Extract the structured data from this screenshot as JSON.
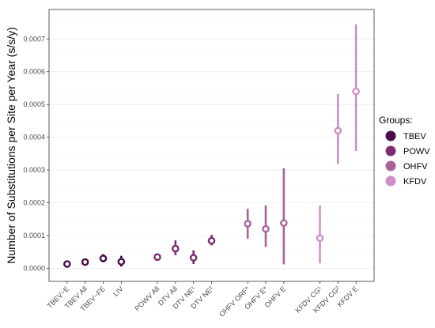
{
  "chart_data": {
    "type": "scatter",
    "title": "",
    "xlabel": "",
    "ylabel": "Number of Substitutions per Site per Year (s/s/y)",
    "ylim": [
      -4e-05,
      0.00079
    ],
    "yticks": [
      "0.0000",
      "0.0001",
      "0.0002",
      "0.0003",
      "0.0004",
      "0.0005",
      "0.0006",
      "0.0007"
    ],
    "ytick_values": [
      0,
      0.0001,
      0.0002,
      0.0003,
      0.0004,
      0.0005,
      0.0006,
      0.0007
    ],
    "grid": true,
    "legend": {
      "title": "Groups:",
      "placement": "right",
      "entries": [
        {
          "name": "TBEV",
          "color": "#4a0c4a"
        },
        {
          "name": "POWV",
          "color": "#7e2e6e"
        },
        {
          "name": "OHFV",
          "color": "#a8649a"
        },
        {
          "name": "KFDV",
          "color": "#cf8fc7"
        }
      ]
    },
    "points": [
      {
        "label": "TBEV−E",
        "group": "TBEV",
        "x": 1,
        "value": 1.3e-05,
        "lower": 1e-05,
        "upper": 1.6e-05
      },
      {
        "label": "TBEV All",
        "group": "TBEV",
        "x": 2,
        "value": 1.9e-05,
        "lower": 1.6e-05,
        "upper": 2.2e-05
      },
      {
        "label": "TBEV−FE",
        "group": "TBEV",
        "x": 3,
        "value": 3e-05,
        "lower": 1.8e-05,
        "upper": 4.3e-05
      },
      {
        "label": "LIV",
        "group": "TBEV",
        "x": 4,
        "value": 2e-05,
        "lower": 5e-06,
        "upper": 3.8e-05
      },
      {
        "label": "POWV All",
        "group": "POWV",
        "x": 6,
        "value": 3.4e-05,
        "lower": 2.3e-05,
        "upper": 4.5e-05
      },
      {
        "label": "DTV All",
        "group": "POWV",
        "x": 7,
        "value": 6e-05,
        "lower": 4e-05,
        "upper": 8.5e-05
      },
      {
        "label": "DTV NE¹",
        "group": "POWV",
        "x": 8,
        "value": 3.2e-05,
        "lower": 1.3e-05,
        "upper": 5.5e-05
      },
      {
        "label": "DTV NE²",
        "group": "POWV",
        "x": 9,
        "value": 8.4e-05,
        "lower": 7e-05,
        "upper": 0.000102
      },
      {
        "label": "OHFV ORF*",
        "group": "OHFV",
        "x": 11,
        "value": 0.000136,
        "lower": 9e-05,
        "upper": 0.000182
      },
      {
        "label": "OHFV E*",
        "group": "OHFV",
        "x": 12,
        "value": 0.00012,
        "lower": 6.5e-05,
        "upper": 0.000192
      },
      {
        "label": "OHFV E",
        "group": "OHFV",
        "x": 13,
        "value": 0.000138,
        "lower": 1.2e-05,
        "upper": 0.000305
      },
      {
        "label": "KFDV CG¹",
        "group": "KFDV",
        "x": 15,
        "value": 9.2e-05,
        "lower": 1.5e-05,
        "upper": 0.000192
      },
      {
        "label": "KFDV CG²",
        "group": "KFDV",
        "x": 16,
        "value": 0.00042,
        "lower": 0.000318,
        "upper": 0.000532
      },
      {
        "label": "KFDV E",
        "group": "KFDV",
        "x": 17,
        "value": 0.00054,
        "lower": 0.000358,
        "upper": 0.000745
      }
    ]
  }
}
